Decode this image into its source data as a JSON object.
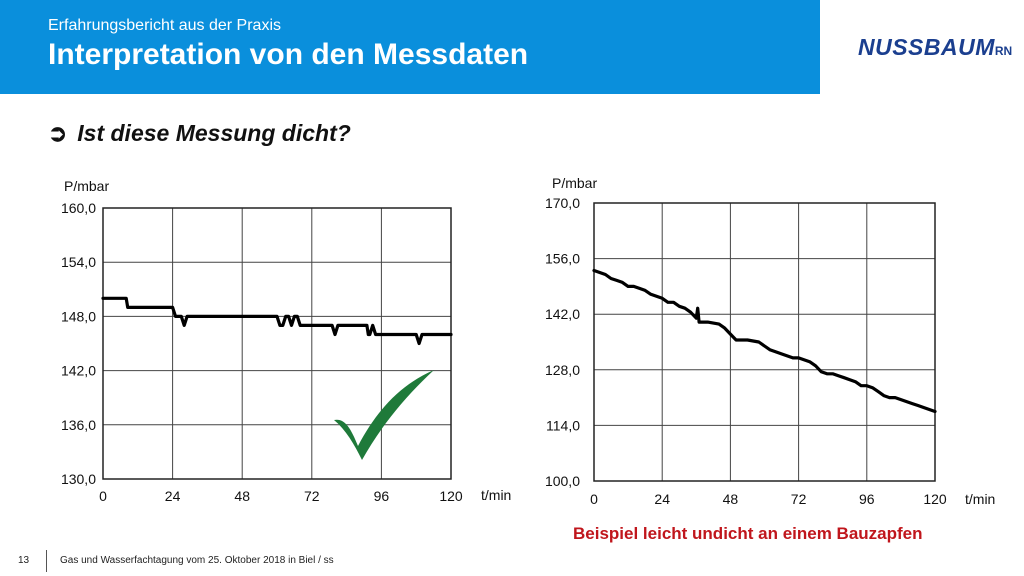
{
  "header": {
    "subtitle": "Erfahrungsbericht aus der Praxis",
    "title": "Interpretation von den Messdaten",
    "logo_main": "NUSSBAUM",
    "logo_suffix": "RN"
  },
  "bullet": {
    "arrow": "➲",
    "text": "Ist diese Messung dicht?"
  },
  "colors": {
    "header_bg": "#0a8fdc",
    "logo": "#1b3f8f",
    "check": "#1f7a3a",
    "caption": "#c0161c"
  },
  "icons": {
    "check": "checkmark-icon"
  },
  "chart_data": [
    {
      "type": "line",
      "ylabel": "P/mbar",
      "xlabel": "t/min",
      "ylim": [
        130,
        160
      ],
      "xlim": [
        0,
        120
      ],
      "yticks": [
        "160,0",
        "154,0",
        "148,0",
        "142,0",
        "136,0",
        "130,0"
      ],
      "xticks": [
        "0",
        "24",
        "48",
        "72",
        "96",
        "120"
      ],
      "grid": true,
      "series": [
        {
          "x": [
            0,
            8,
            8.5,
            24,
            25,
            27,
            28,
            29,
            30,
            60,
            61,
            62,
            63,
            64,
            65,
            66,
            67,
            68,
            70,
            71,
            72,
            79,
            80,
            81,
            82,
            91,
            91.5,
            92,
            93,
            94,
            95,
            98,
            108,
            109,
            110,
            120
          ],
          "y": [
            150,
            150,
            149,
            149,
            148,
            148,
            147,
            148,
            148,
            148,
            147,
            147,
            148,
            148,
            147,
            148,
            148,
            147,
            147,
            147,
            147,
            147,
            146,
            147,
            147,
            147,
            146,
            146,
            147,
            146,
            146,
            146,
            146,
            145,
            146,
            146
          ]
        }
      ]
    },
    {
      "type": "line",
      "ylabel": "P/mbar",
      "xlabel": "t/min",
      "ylim": [
        100,
        170
      ],
      "xlim": [
        0,
        120
      ],
      "yticks": [
        "170,0",
        "156,0",
        "142,0",
        "128,0",
        "114,0",
        "100,0"
      ],
      "xticks": [
        "0",
        "24",
        "48",
        "72",
        "96",
        "120"
      ],
      "grid": true,
      "series": [
        {
          "x": [
            0,
            2,
            4,
            6,
            8,
            10,
            12,
            14,
            16,
            18,
            20,
            22,
            24,
            26,
            28,
            30,
            32,
            34,
            36,
            36.5,
            37,
            38,
            40,
            44,
            46,
            48,
            50,
            52,
            54,
            58,
            60,
            62,
            64,
            66,
            68,
            70,
            72,
            74,
            76,
            78,
            80,
            82,
            84,
            86,
            88,
            90,
            92,
            94,
            96,
            98,
            100,
            102,
            104,
            106,
            108,
            110,
            112,
            114,
            116,
            118,
            120
          ],
          "y": [
            153,
            152.5,
            152,
            151,
            150.5,
            150,
            149,
            149,
            148.5,
            148,
            147,
            146.5,
            146,
            145,
            145,
            144,
            143.5,
            142.5,
            141,
            143.5,
            140,
            140,
            140,
            139.5,
            138.5,
            137,
            135.5,
            135.5,
            135.5,
            135,
            134,
            133,
            132.5,
            132,
            131.5,
            131,
            131,
            130.5,
            130,
            129,
            127.5,
            127,
            127,
            126.5,
            126,
            125.5,
            125,
            124,
            124,
            123.5,
            122.5,
            121.5,
            121,
            121,
            120.5,
            120,
            119.5,
            119,
            118.5,
            118,
            117.5
          ]
        }
      ]
    }
  ],
  "caption": "Beispiel leicht undicht an einem Bauzapfen",
  "footer": {
    "page_number": "13",
    "text": "Gas und Wasserfachtagung vom 25. Oktober 2018 in Biel / ss"
  }
}
